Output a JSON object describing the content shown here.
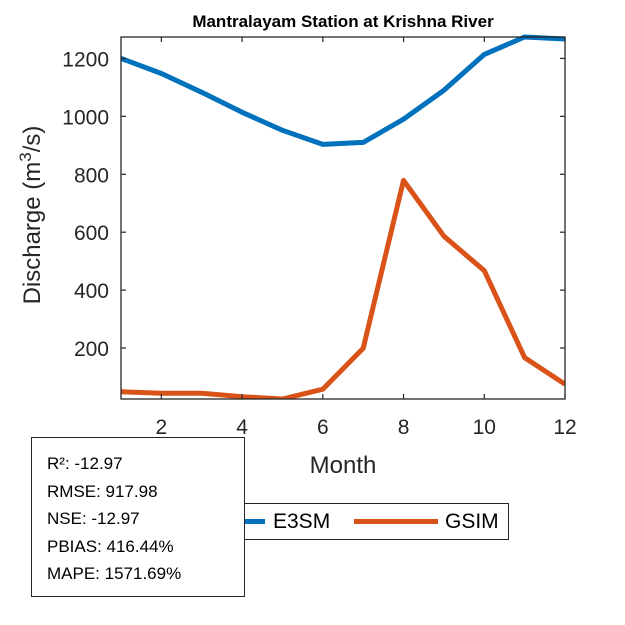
{
  "chart_data": {
    "type": "line",
    "title": "Mantralayam  Station at  Krishna  River",
    "xlabel": "Month",
    "ylabel": "Discharge (m",
    "ylabel_superscript": "3",
    "ylabel_suffix": "/s)",
    "x": [
      1,
      2,
      3,
      4,
      5,
      6,
      7,
      8,
      9,
      10,
      11,
      12
    ],
    "xlim": [
      1,
      12
    ],
    "ylim": [
      24,
      1274
    ],
    "xticks": [
      2,
      4,
      6,
      8,
      10,
      12
    ],
    "yticks": [
      200,
      400,
      600,
      800,
      1000,
      1200
    ],
    "grid": false,
    "legend_position": "bottom-center",
    "series": [
      {
        "name": "E3SM",
        "color": "#0072BD",
        "values": [
          1200,
          1148,
          1083,
          1014,
          952,
          903,
          910,
          990,
          1090,
          1214,
          1274,
          1267
        ]
      },
      {
        "name": "GSIM",
        "color": "#D95319",
        "values": [
          49,
          44,
          44,
          32,
          24,
          58,
          199,
          779,
          586,
          467,
          167,
          75
        ]
      }
    ]
  },
  "stats": {
    "lines": [
      "R²: -12.97",
      "RMSE: 917.98",
      "NSE: -12.97",
      "PBIAS: 416.44%",
      "MAPE: 1571.69%"
    ]
  },
  "legend": {
    "items": [
      {
        "label": "E3SM",
        "color": "#0072BD"
      },
      {
        "label": "GSIM",
        "color": "#D95319"
      }
    ]
  }
}
